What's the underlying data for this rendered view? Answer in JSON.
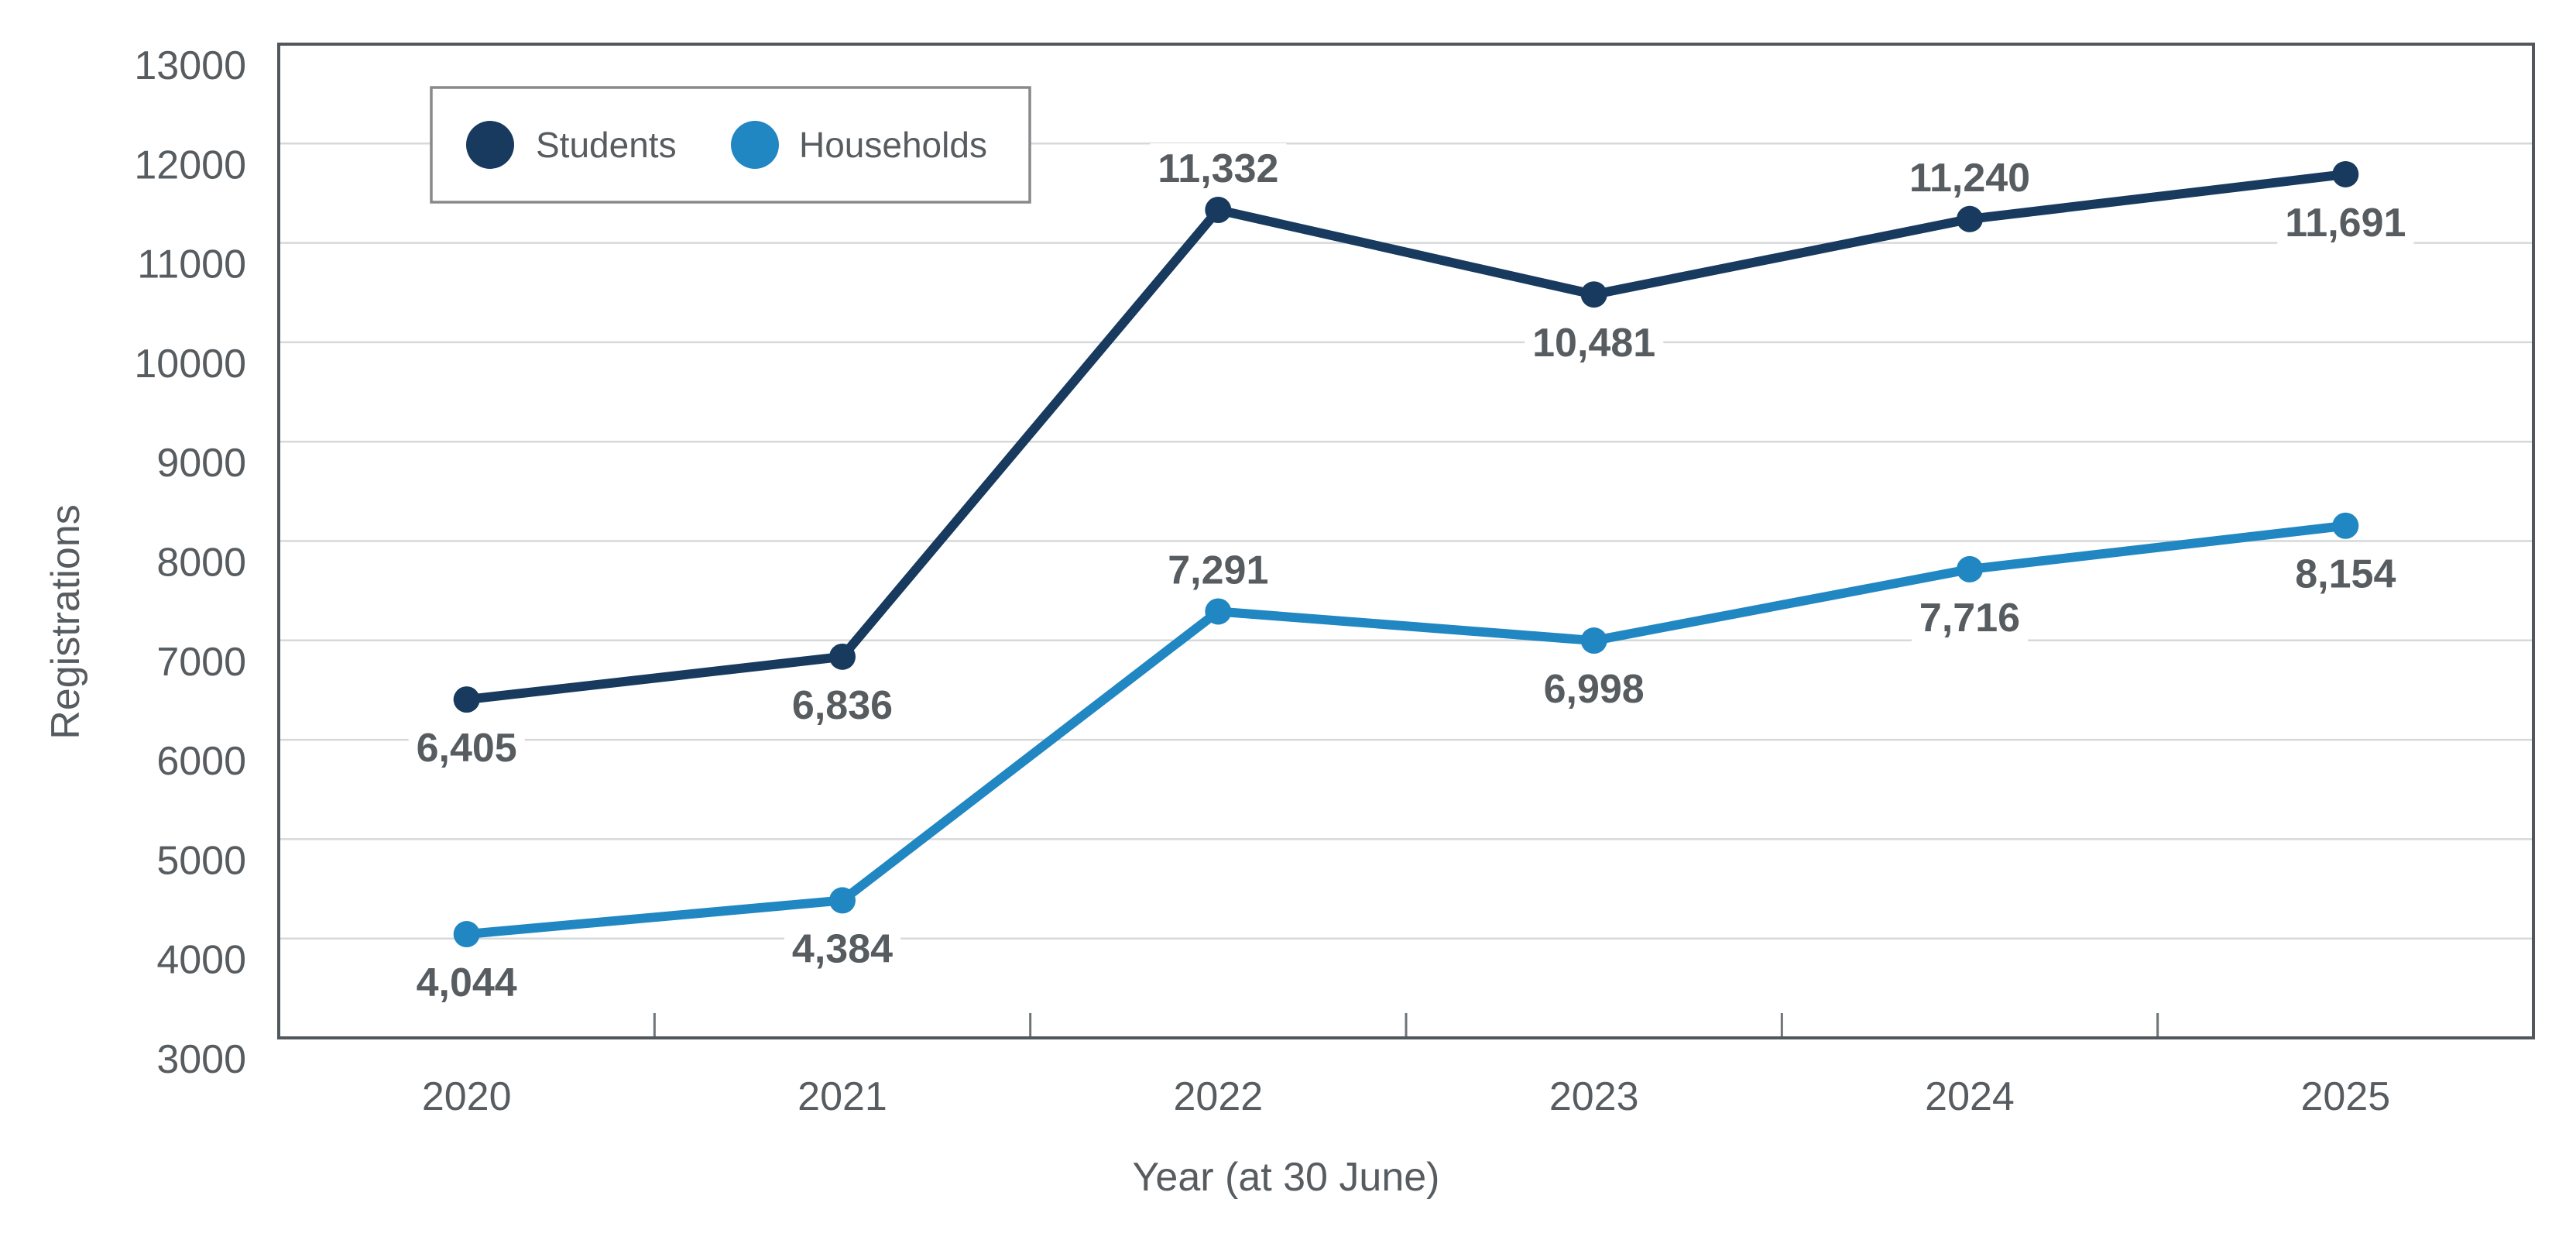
{
  "chart_data": {
    "type": "line",
    "title": "",
    "xlabel": "Year (at 30 June)",
    "ylabel": "Registrations",
    "categories": [
      "2020",
      "2021",
      "2022",
      "2023",
      "2024",
      "2025"
    ],
    "series": [
      {
        "name": "Students",
        "color": "#173A5E",
        "values": [
          6405,
          6836,
          11332,
          10481,
          11240,
          11691
        ],
        "labels": [
          "6,405",
          "6,836",
          "11,332",
          "10,481",
          "11,240",
          "11,691"
        ],
        "label_position": [
          "below",
          "below",
          "above",
          "below",
          "above",
          "below"
        ]
      },
      {
        "name": "Households",
        "color": "#2187C2",
        "values": [
          4044,
          4384,
          7291,
          6998,
          7716,
          8154
        ],
        "labels": [
          "4,044",
          "4,384",
          "7,291",
          "6,998",
          "7,716",
          "8,154"
        ],
        "label_position": [
          "below",
          "below",
          "above",
          "below",
          "below",
          "below"
        ]
      }
    ],
    "y_axis": {
      "min": 3000,
      "max": 13000,
      "step": 1000,
      "tick_labels": [
        "3000",
        "4000",
        "5000",
        "6000",
        "7000",
        "8000",
        "9000",
        "10000",
        "11000",
        "12000",
        "13000"
      ]
    },
    "legend": {
      "position": "top-left-inside",
      "entries": [
        "Students",
        "Households"
      ]
    },
    "grid": "horizontal-major",
    "colors": {
      "students": "#173A5E",
      "households": "#2187C2",
      "gridline": "#D6D8D9",
      "axis_border": "#51575B",
      "tick_mark": "#6E7478",
      "text": "#575C60",
      "data_label_text": "#53585C",
      "legend_border": "#87898B",
      "background": "#FFFFFF"
    }
  }
}
